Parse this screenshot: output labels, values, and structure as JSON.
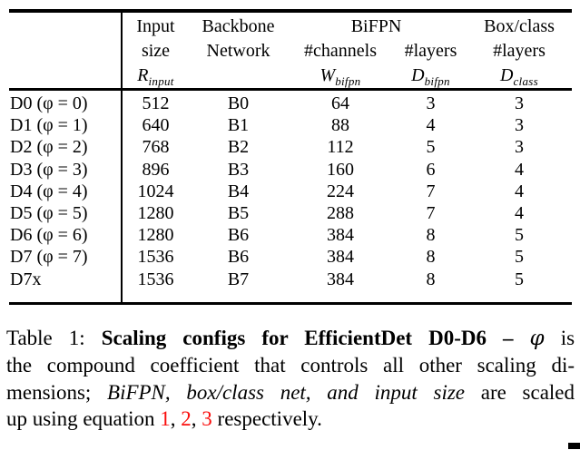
{
  "colors": {
    "background": "#ffffff",
    "text": "#000000",
    "rule": "#000000",
    "equation_link_red": "#fa0d0c"
  },
  "table": {
    "header": {
      "input_line1": "Input",
      "input_line2": "size",
      "backbone_line1": "Backbone",
      "backbone_line2": "Network",
      "group_bifpn": "BiFPN",
      "channels_label": "#channels",
      "bifpn_layers_label": "#layers",
      "box_class_label": "Box/class",
      "box_class_layers_label": "#layers",
      "sym_input": {
        "base": "R",
        "sub": "input"
      },
      "sym_channels": {
        "base": "W",
        "sub": "bifpn"
      },
      "sym_bifpn_layers": {
        "base": "D",
        "sub": "bifpn"
      },
      "sym_class_layers": {
        "base": "D",
        "sub": "class"
      }
    },
    "rows": [
      [
        "D0 (φ = 0)",
        "512",
        "B0",
        "64",
        "3",
        "3"
      ],
      [
        "D1 (φ = 1)",
        "640",
        "B1",
        "88",
        "4",
        "3"
      ],
      [
        "D2 (φ = 2)",
        "768",
        "B2",
        "112",
        "5",
        "3"
      ],
      [
        "D3 (φ = 3)",
        "896",
        "B3",
        "160",
        "6",
        "4"
      ],
      [
        "D4 (φ = 4)",
        "1024",
        "B4",
        "224",
        "7",
        "4"
      ],
      [
        "D5 (φ = 5)",
        "1280",
        "B5",
        "288",
        "7",
        "4"
      ],
      [
        "D6 (φ = 6)",
        "1280",
        "B6",
        "384",
        "8",
        "5"
      ],
      [
        "D7 (φ = 7)",
        "1536",
        "B6",
        "384",
        "8",
        "5"
      ],
      [
        "D7x",
        "1536",
        "B7",
        "384",
        "8",
        "5"
      ]
    ]
  },
  "caption": {
    "label": "Table 1:",
    "bold": "Scaling configs for EfficientDet D0-D6 –",
    "phi": "φ",
    "after_phi": "is",
    "line2": "the compound coefficient that controls all other scaling di-",
    "line3_pre": "mensions;",
    "line3_italic": "BiFPN, box/class net, and input size",
    "line3_post": "are scaled",
    "line4_pre": "up using equation",
    "eq1": "1",
    "eq2": "2",
    "eq3": "3",
    "comma": ",",
    "line4_post": "respectively."
  }
}
